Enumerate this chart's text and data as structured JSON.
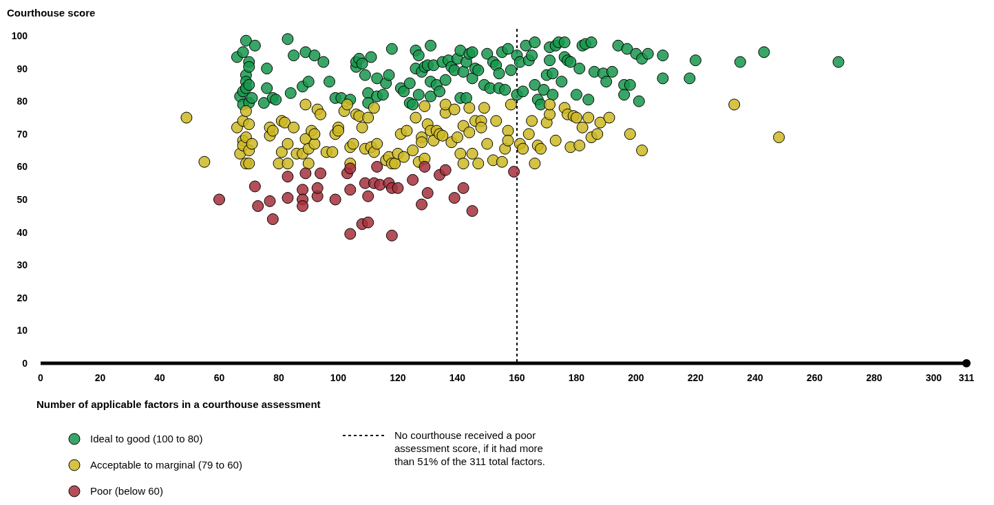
{
  "chart_data": {
    "type": "scatter",
    "ylabel": "Courthouse score",
    "xlabel": "Number of applicable factors in a courthouse assessment",
    "xlim": [
      0,
      311
    ],
    "xticks": [
      0,
      20,
      40,
      60,
      80,
      100,
      120,
      140,
      160,
      180,
      200,
      220,
      240,
      260,
      280,
      300,
      311
    ],
    "ylim": [
      0,
      100
    ],
    "yticks": [
      0,
      10,
      20,
      30,
      40,
      50,
      60,
      70,
      80,
      90,
      100
    ],
    "grid": false,
    "legend": "bottom",
    "marker": "circle",
    "ref_lines": [
      {
        "axis": "x",
        "value": 160,
        "label": "No courthouse received a poor assessment score, if it had more than 51% of the 311 total factors.",
        "line_style": "dotted",
        "color": "#000000"
      }
    ],
    "series": [
      {
        "name": "Ideal to good (100 to 80)",
        "color": "#16974c",
        "x": [
          66,
          67,
          68,
          68,
          68,
          69,
          69,
          69,
          69,
          70,
          70,
          70,
          70,
          71,
          72,
          75,
          76,
          76,
          78,
          79,
          83,
          84,
          85,
          88,
          89,
          90,
          92,
          95,
          97,
          99,
          101,
          104,
          106,
          106,
          107,
          108,
          109,
          110,
          110,
          111,
          113,
          113,
          115,
          116,
          117,
          118,
          121,
          122,
          124,
          124,
          125,
          126,
          126,
          127,
          127,
          128,
          129,
          130,
          131,
          131,
          131,
          132,
          133,
          134,
          135,
          136,
          137,
          138,
          139,
          140,
          141,
          141,
          142,
          143,
          143,
          144,
          145,
          145,
          146,
          147,
          149,
          150,
          151,
          152,
          153,
          154,
          154,
          155,
          156,
          157,
          158,
          160,
          160,
          161,
          162,
          163,
          164,
          165,
          166,
          166,
          167,
          168,
          169,
          170,
          171,
          171,
          172,
          172,
          173,
          174,
          175,
          176,
          176,
          177,
          178,
          180,
          181,
          182,
          183,
          184,
          185,
          186,
          189,
          190,
          192,
          194,
          196,
          196,
          197,
          198,
          200,
          201,
          202,
          204,
          209,
          209,
          218,
          220,
          235,
          243,
          268
        ],
        "values": [
          93.5,
          81.5,
          95,
          79,
          83,
          98.5,
          88,
          86,
          84,
          92,
          90.5,
          85,
          79.5,
          81,
          97,
          79.5,
          90,
          84,
          81,
          80.5,
          99,
          82.5,
          94,
          84.5,
          95,
          86,
          94,
          92,
          86,
          81,
          81,
          80.5,
          90.5,
          92,
          93,
          91.5,
          88,
          82.5,
          79.5,
          93.5,
          81.5,
          87,
          82,
          85.5,
          88,
          96,
          84,
          83,
          85.5,
          79.5,
          79,
          95.5,
          90,
          82,
          94,
          89,
          90.5,
          91,
          97,
          86,
          81.5,
          91,
          85,
          83,
          92,
          86.5,
          92.5,
          90.5,
          89.5,
          93,
          81,
          95.5,
          89,
          81,
          92,
          94.5,
          95,
          87,
          90,
          89.5,
          85,
          94.5,
          84,
          92,
          91,
          88.5,
          84,
          95,
          83.5,
          96,
          89.5,
          94,
          82,
          92,
          83,
          97,
          92.5,
          94,
          98,
          85,
          80.5,
          79,
          83.5,
          88,
          92.5,
          96.5,
          88.5,
          82,
          97,
          98,
          86,
          98,
          93.5,
          92.5,
          92,
          82,
          90,
          97,
          97.5,
          80.5,
          98,
          89,
          88.5,
          86,
          89,
          97,
          85,
          82,
          96,
          85,
          94.5,
          80,
          93,
          94.5,
          94,
          87,
          87,
          92.5,
          92,
          95,
          92
        ]
      },
      {
        "name": "Acceptable to marginal (79 to 60)",
        "color": "#cdb823",
        "x": [
          49,
          55,
          66,
          67,
          68,
          68,
          68,
          69,
          69,
          69,
          70,
          70,
          70,
          71,
          77,
          77,
          78,
          80,
          81,
          81,
          82,
          83,
          83,
          85,
          86,
          88,
          89,
          89,
          90,
          90,
          91,
          92,
          92,
          93,
          94,
          96,
          98,
          99,
          100,
          100,
          102,
          103,
          104,
          104,
          105,
          106,
          107,
          108,
          109,
          110,
          111,
          112,
          112,
          113,
          116,
          117,
          118,
          119,
          120,
          121,
          122,
          123,
          125,
          126,
          127,
          128,
          128,
          129,
          129,
          130,
          131,
          132,
          133,
          134,
          135,
          136,
          136,
          138,
          139,
          140,
          141,
          142,
          142,
          144,
          144,
          145,
          146,
          147,
          148,
          148,
          149,
          150,
          152,
          153,
          155,
          156,
          157,
          157,
          158,
          161,
          162,
          164,
          165,
          166,
          167,
          168,
          170,
          171,
          171,
          173,
          176,
          177,
          178,
          179,
          180,
          181,
          182,
          184,
          185,
          187,
          188,
          191,
          198,
          202,
          233,
          248
        ],
        "values": [
          75,
          61.5,
          72,
          64,
          74,
          68,
          66.5,
          61,
          69,
          77,
          73,
          65,
          61,
          67,
          69.5,
          72,
          71,
          61,
          64.5,
          74,
          73.5,
          67,
          61,
          72,
          64,
          64,
          79,
          68.5,
          61,
          65.5,
          71,
          67,
          70,
          77.5,
          76,
          64.5,
          64.5,
          70,
          72,
          71,
          77,
          79,
          66,
          61,
          67,
          76,
          75.5,
          72,
          65.5,
          75,
          66,
          78,
          64.5,
          67,
          62,
          63,
          61,
          61,
          64,
          70,
          63,
          71,
          65,
          75,
          61.5,
          69,
          67.5,
          78.5,
          62.5,
          73,
          71,
          68,
          71,
          70,
          69.5,
          76.5,
          79,
          67.5,
          77.5,
          69,
          64,
          61,
          72.5,
          70.5,
          78,
          64,
          74,
          61,
          74,
          72,
          78,
          67,
          62,
          74,
          61.5,
          65.5,
          71,
          68,
          79,
          67,
          65.5,
          70,
          74,
          61,
          66.5,
          65.5,
          73.5,
          76,
          79,
          68,
          78,
          76,
          66,
          75.5,
          75,
          66.5,
          72,
          75,
          69,
          70,
          73.5,
          75,
          70,
          65,
          79,
          69
        ]
      },
      {
        "name": "Poor (below 60)",
        "color": "#a5303c",
        "x": [
          60,
          72,
          73,
          77,
          78,
          83,
          83,
          88,
          88,
          88,
          89,
          93,
          93,
          94,
          99,
          103,
          104,
          104,
          104,
          109,
          108,
          110,
          110,
          112,
          114,
          113,
          117,
          118,
          118,
          120,
          125,
          128,
          129,
          130,
          134,
          136,
          139,
          142,
          145,
          159
        ],
        "values": [
          50,
          54,
          48,
          49.5,
          44,
          57,
          50.5,
          53,
          50,
          48,
          58,
          51,
          53.5,
          58,
          50,
          58,
          59.5,
          53,
          39.5,
          55,
          42.5,
          43,
          51,
          55,
          54.5,
          60,
          55,
          39,
          53.5,
          53.5,
          56,
          48.5,
          60,
          52,
          57.5,
          59,
          50.5,
          53.5,
          46.5,
          58.5
        ]
      }
    ]
  }
}
